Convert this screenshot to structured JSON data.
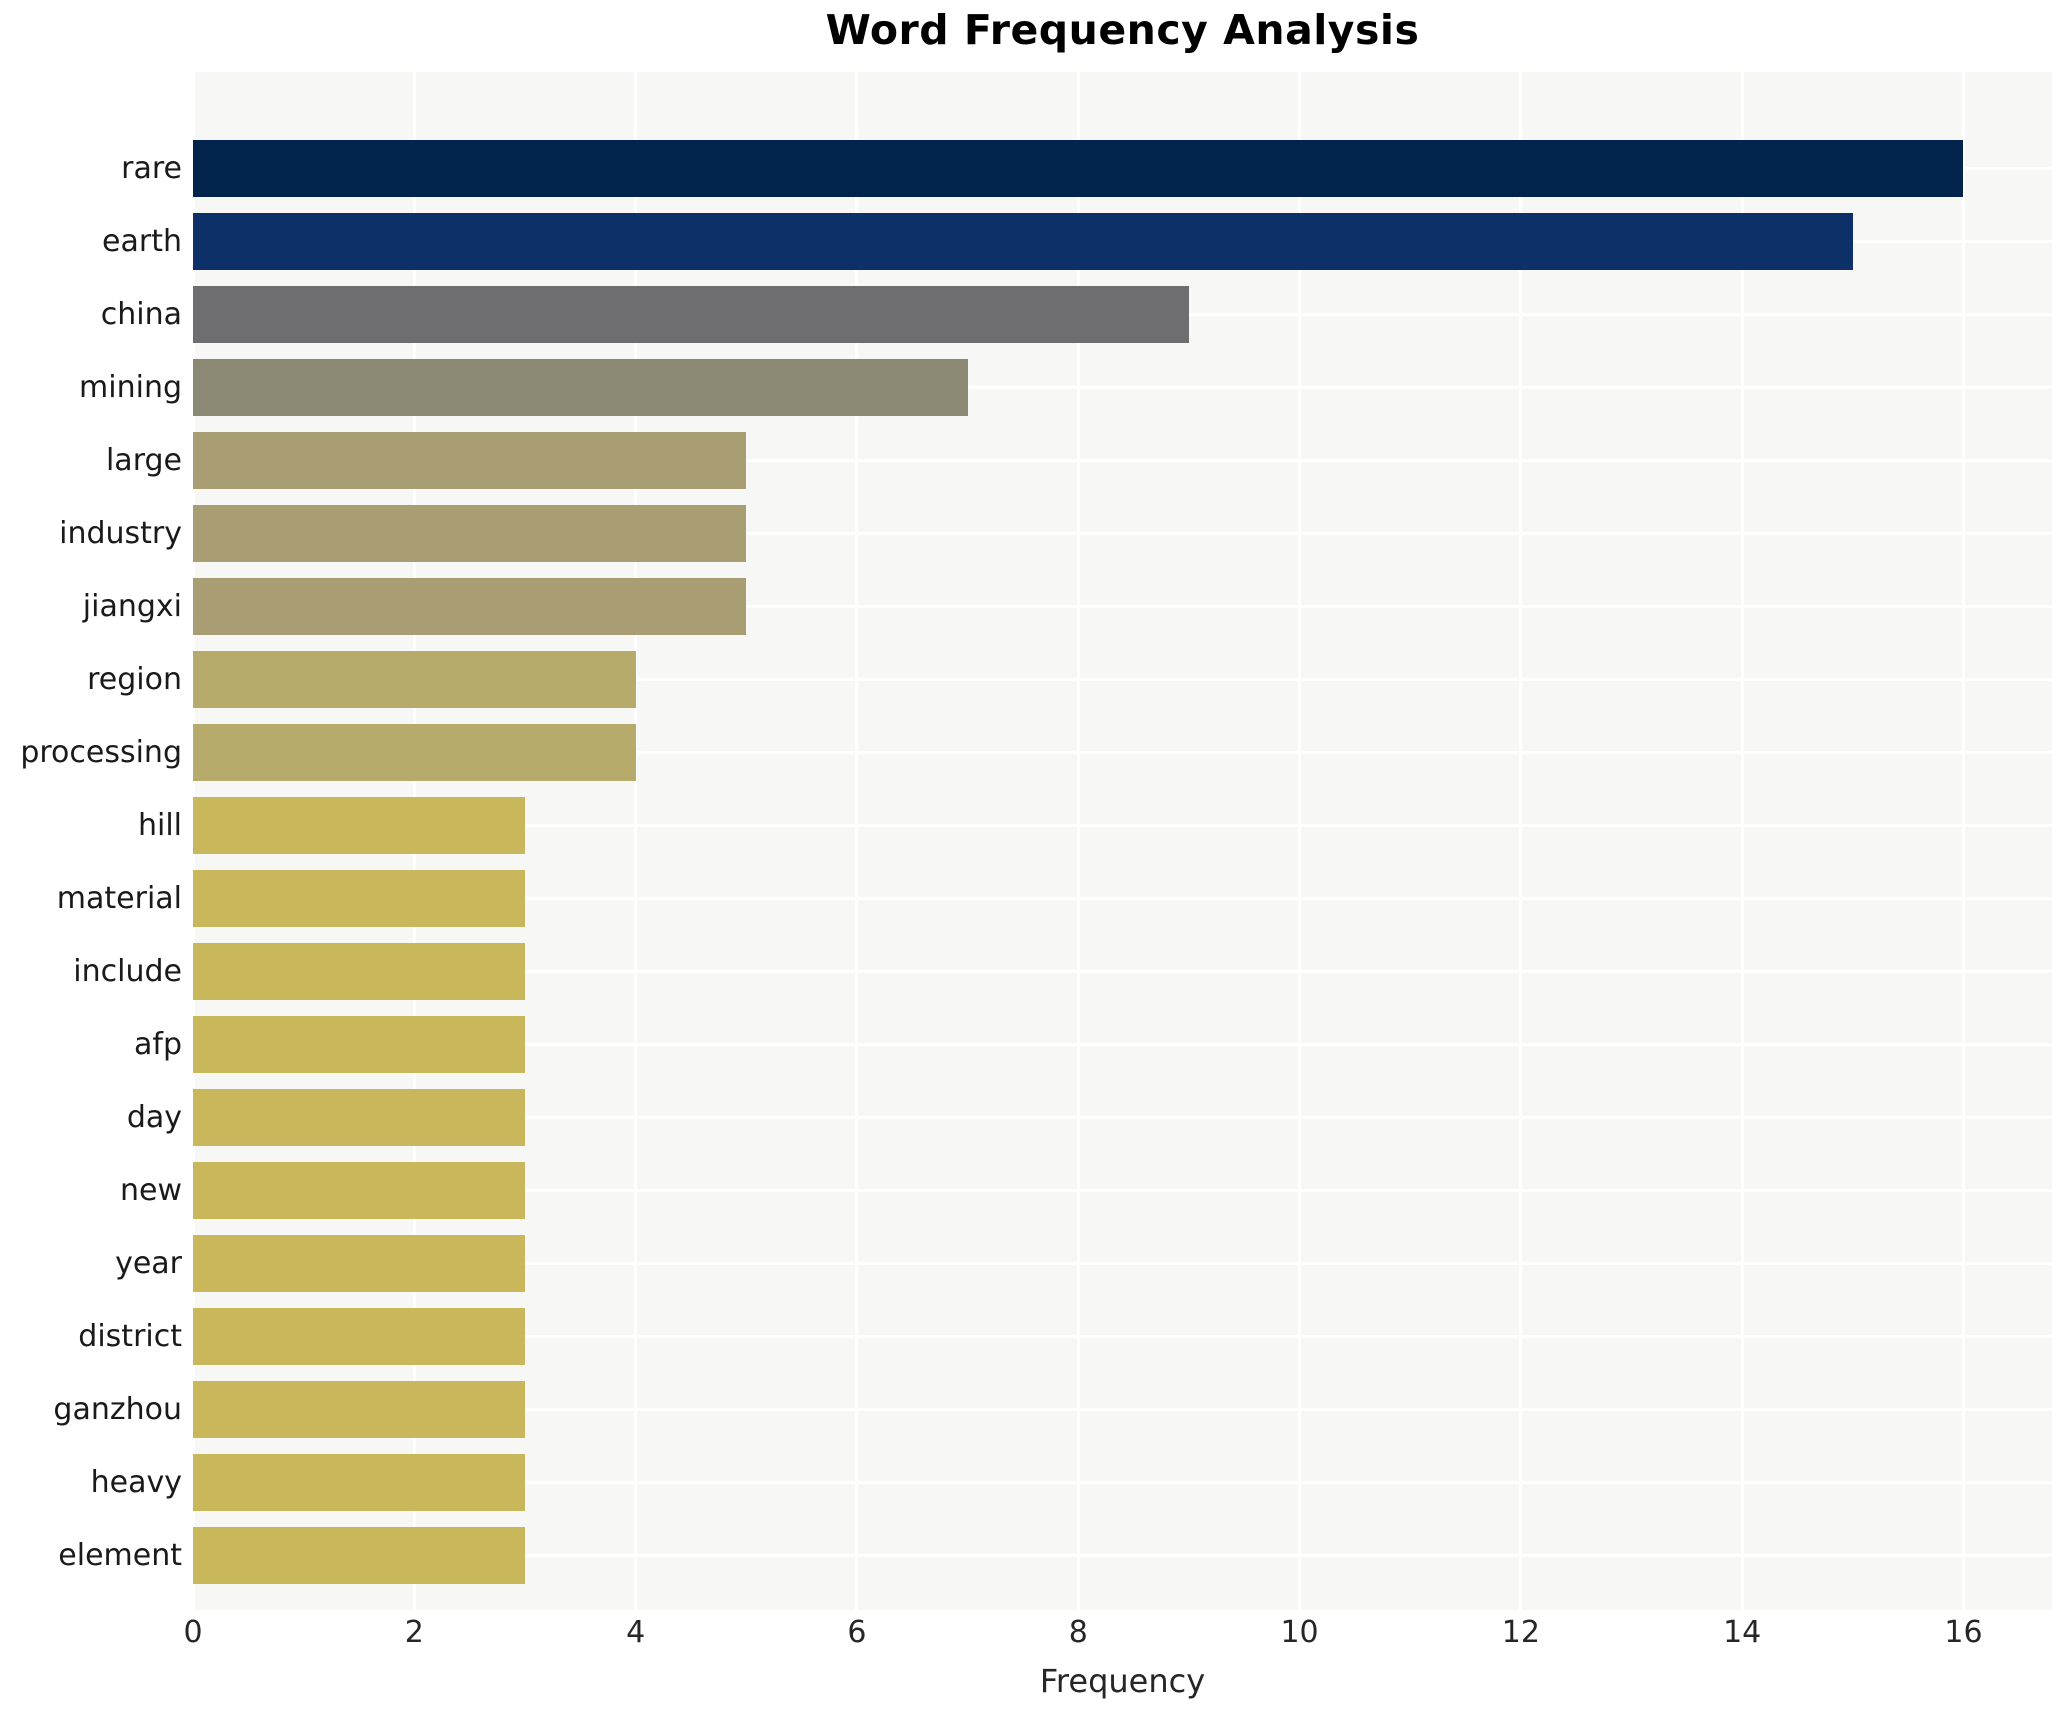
{
  "title": "Word Frequency Analysis",
  "chart_data": {
    "type": "bar",
    "orientation": "horizontal",
    "title": "Word Frequency Analysis",
    "xlabel": "Frequency",
    "ylabel": "",
    "categories": [
      "rare",
      "earth",
      "china",
      "mining",
      "large",
      "industry",
      "jiangxi",
      "region",
      "processing",
      "hill",
      "material",
      "include",
      "afp",
      "day",
      "new",
      "year",
      "district",
      "ganzhou",
      "heavy",
      "element"
    ],
    "values": [
      16,
      15,
      9,
      7,
      5,
      5,
      5,
      4,
      4,
      3,
      3,
      3,
      3,
      3,
      3,
      3,
      3,
      3,
      3,
      3
    ],
    "bar_colors": [
      "#02234c",
      "#0d3068",
      "#6e6e71",
      "#8b8874",
      "#a89d73",
      "#a89d73",
      "#a89d73",
      "#b7ab6b",
      "#b7ab6b",
      "#c9b75c",
      "#c9b75c",
      "#c9b75c",
      "#c9b75c",
      "#c9b75c",
      "#c9b75c",
      "#c9b75c",
      "#c9b75c",
      "#c9b75c",
      "#c9b75c",
      "#c9b75c"
    ],
    "xlim": [
      0,
      16.8
    ],
    "xticks": [
      0,
      2,
      4,
      6,
      8,
      10,
      12,
      14,
      16
    ],
    "grid": true,
    "legend": "none",
    "plot_bg_color": "#f7f7f5",
    "grid_color": "#ffffff",
    "figure_bg_color": "#ffffff"
  }
}
